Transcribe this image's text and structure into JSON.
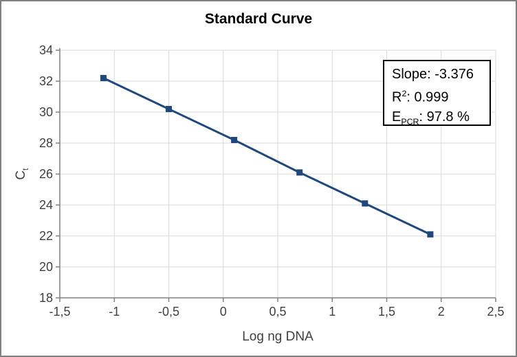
{
  "chart_data": {
    "type": "line",
    "title": "Standard Curve",
    "xlabel": "Log ng DNA",
    "ylabel": {
      "base": "C",
      "sub": "t"
    },
    "xlim": [
      -1.5,
      2.5
    ],
    "ylim": [
      18,
      34
    ],
    "grid": true,
    "x_ticks": [
      {
        "v": -1.5,
        "label": "-1,5"
      },
      {
        "v": -1.0,
        "label": "-1"
      },
      {
        "v": -0.5,
        "label": "-0,5"
      },
      {
        "v": 0.0,
        "label": "0"
      },
      {
        "v": 0.5,
        "label": "0,5"
      },
      {
        "v": 1.0,
        "label": "1"
      },
      {
        "v": 1.5,
        "label": "1,5"
      },
      {
        "v": 2.0,
        "label": "2"
      },
      {
        "v": 2.5,
        "label": "2,5"
      }
    ],
    "y_ticks": [
      {
        "v": 18,
        "label": "18"
      },
      {
        "v": 20,
        "label": "20"
      },
      {
        "v": 22,
        "label": "22"
      },
      {
        "v": 24,
        "label": "24"
      },
      {
        "v": 26,
        "label": "26"
      },
      {
        "v": 28,
        "label": "28"
      },
      {
        "v": 30,
        "label": "30"
      },
      {
        "v": 32,
        "label": "32"
      },
      {
        "v": 34,
        "label": "34"
      }
    ],
    "series": [
      {
        "name": "standard-curve",
        "marker": "square",
        "points": [
          {
            "x": -1.1,
            "y": 32.2
          },
          {
            "x": -0.5,
            "y": 30.2
          },
          {
            "x": 0.1,
            "y": 28.2
          },
          {
            "x": 0.7,
            "y": 26.1
          },
          {
            "x": 1.3,
            "y": 24.1
          },
          {
            "x": 1.9,
            "y": 22.1
          }
        ]
      }
    ],
    "annotation": {
      "slope": {
        "base": "Slope",
        "rest": ": -3.376"
      },
      "r2": {
        "base": "R",
        "sup": "2",
        "rest": ": 0.999"
      },
      "epcr": {
        "base": "E",
        "sub": "PCR",
        "rest": ": 97.8 %"
      }
    },
    "colors": {
      "line": "#1F497D",
      "marker": "#1F497D",
      "grid": "#D9D9D9",
      "axis": "#808080",
      "tick_label": "#404040",
      "text": "#000000",
      "border": "#808080",
      "background": "#FFFFFF"
    }
  }
}
